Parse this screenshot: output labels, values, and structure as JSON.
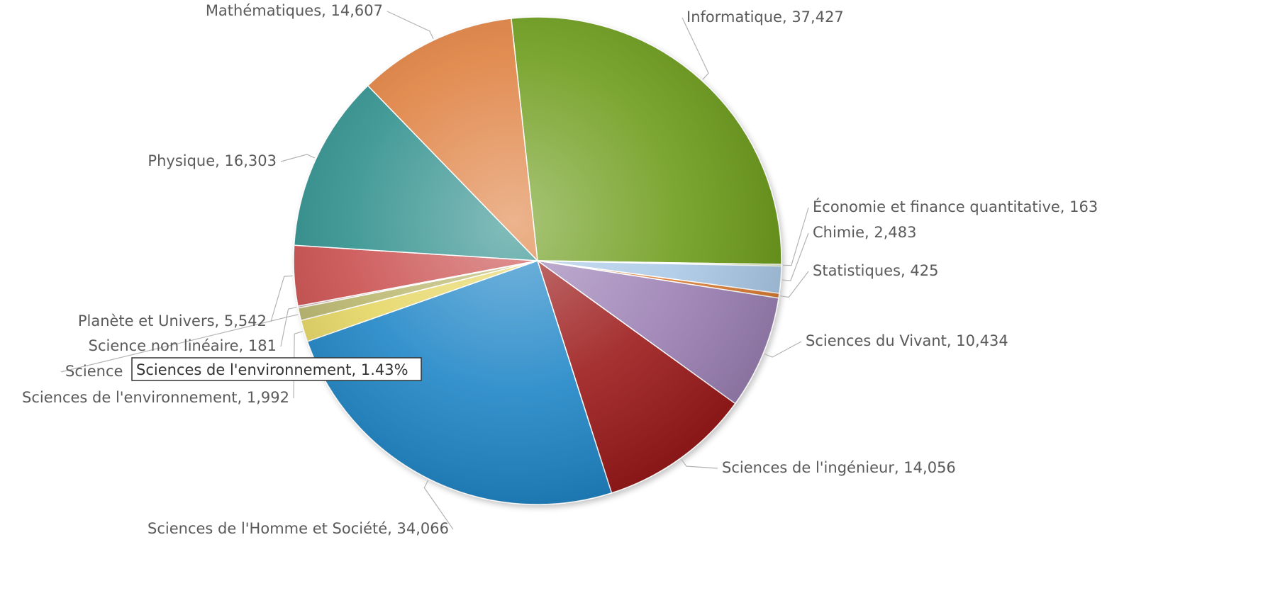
{
  "chart_data": {
    "type": "pie",
    "title": "",
    "slices": [
      {
        "label": "Informatique",
        "display": "Informatique, 37,427",
        "value": 37427,
        "color": "#6b9a12"
      },
      {
        "label": "Économie et finance quantitative",
        "display": "Économie et finance quantitative, 163",
        "value": 163,
        "color": "#c7e38a"
      },
      {
        "label": "Chimie",
        "display": "Chimie, 2,483",
        "value": 2483,
        "color": "#a9c8e6"
      },
      {
        "label": "Statistiques",
        "display": "Statistiques, 425",
        "value": 425,
        "color": "#d9792f"
      },
      {
        "label": "Sciences du Vivant",
        "display": "Sciences du Vivant, 10,434",
        "value": 10434,
        "color": "#9b7fb4"
      },
      {
        "label": "Sciences de l'ingénieur",
        "display": "Sciences de l'ingénieur, 14,056",
        "value": 14056,
        "color": "#9a1515"
      },
      {
        "label": "Sciences de l'Homme et Société",
        "display": "Sciences de l'Homme et Société, 34,066",
        "value": 34066,
        "color": "#1a84c6"
      },
      {
        "label": "Sciences de l'environnement",
        "display": "Sciences de l'environnement, 1,992",
        "value": 1992,
        "color": "#e5d561"
      },
      {
        "label": "Sciences cognitives",
        "display": "Science",
        "value": 1150,
        "color": "#b8b56a"
      },
      {
        "label": "Science non linéaire",
        "display": "Science non linéaire, 181",
        "value": 181,
        "color": "#c7a7a7"
      },
      {
        "label": "Planète et Univers",
        "display": "Planète et Univers, 5,542",
        "value": 5542,
        "color": "#c94b4b"
      },
      {
        "label": "Physique",
        "display": "Physique, 16,303",
        "value": 16303,
        "color": "#2a8d8a"
      },
      {
        "label": "Mathématiques",
        "display": "Mathématiques, 14,607",
        "value": 14607,
        "color": "#de7d3a"
      }
    ],
    "tooltip": {
      "text": "Sciences de l'environnement, 1.43%"
    }
  }
}
